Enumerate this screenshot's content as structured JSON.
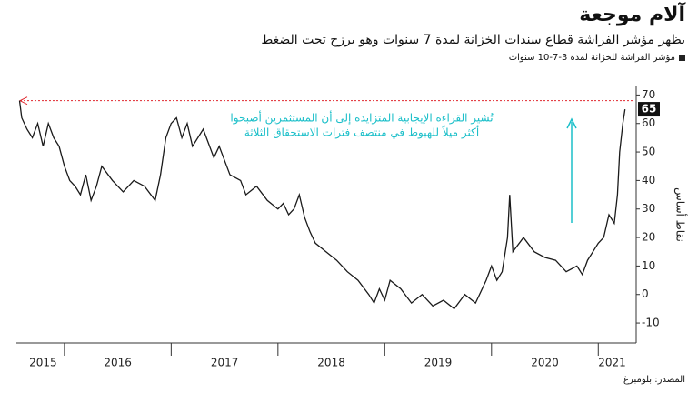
{
  "title": "آلام موجعة",
  "subtitle": "يظهر مؤشر الفراشة قطاع سندات الخزانة لمدة 7 سنوات وهو يرزح تحت الضغط",
  "source": "المصدر: بلومبرغ",
  "chart_data": {
    "type": "line",
    "y_label": "نقاط أساس",
    "annotation": [
      "تُشير القراءة الإيجابية المتزايدة إلى أن المستثمرين أصبحوا",
      "أكثر ميلاً للهبوط في منتصف فترات الاستحقاق الثلاثة"
    ],
    "annotation_color": "#1bbfc9",
    "reference_line": 68,
    "reference_color": "#e0282e",
    "x": [
      2015.58,
      2015.6,
      2015.65,
      2015.7,
      2015.75,
      2015.8,
      2015.85,
      2015.9,
      2015.95,
      2016.0,
      2016.05,
      2016.1,
      2016.15,
      2016.2,
      2016.25,
      2016.3,
      2016.35,
      2016.45,
      2016.55,
      2016.65,
      2016.75,
      2016.85,
      2016.9,
      2016.95,
      2017.0,
      2017.05,
      2017.1,
      2017.15,
      2017.2,
      2017.3,
      2017.4,
      2017.45,
      2017.55,
      2017.65,
      2017.7,
      2017.8,
      2017.9,
      2018.0,
      2018.05,
      2018.1,
      2018.15,
      2018.2,
      2018.25,
      2018.3,
      2018.35,
      2018.45,
      2018.55,
      2018.65,
      2018.75,
      2018.85,
      2018.9,
      2018.95,
      2019.0,
      2019.05,
      2019.15,
      2019.25,
      2019.35,
      2019.45,
      2019.55,
      2019.65,
      2019.75,
      2019.85,
      2019.95,
      2020.0,
      2020.05,
      2020.1,
      2020.15,
      2020.17,
      2020.2,
      2020.3,
      2020.4,
      2020.5,
      2020.6,
      2020.7,
      2020.8,
      2020.85,
      2020.9,
      2020.95,
      2021.0,
      2021.05,
      2021.1,
      2021.15,
      2021.18,
      2021.2,
      2021.23,
      2021.25
    ],
    "series": [
      {
        "name": "مؤشر الفراشة للخزانة لمدة 3-7-10 سنوات",
        "color": "#1a1a1a",
        "values": [
          68,
          62,
          58,
          55,
          60,
          52,
          60,
          55,
          52,
          45,
          40,
          38,
          35,
          42,
          33,
          38,
          45,
          40,
          36,
          40,
          38,
          33,
          42,
          55,
          60,
          62,
          55,
          60,
          52,
          58,
          48,
          52,
          42,
          40,
          35,
          38,
          33,
          30,
          32,
          28,
          30,
          35,
          27,
          22,
          18,
          15,
          12,
          8,
          5,
          0,
          -3,
          2,
          -2,
          5,
          2,
          -3,
          0,
          -4,
          -2,
          -5,
          0,
          -3,
          5,
          10,
          5,
          8,
          20,
          35,
          15,
          20,
          15,
          13,
          12,
          8,
          10,
          7,
          12,
          15,
          18,
          20,
          28,
          25,
          35,
          50,
          60,
          65
        ]
      }
    ],
    "xlim": [
      2015.55,
      2021.27
    ],
    "xticks": [
      {
        "value": 2015.8,
        "label": "2015"
      },
      {
        "value": 2016.5,
        "label": "2016"
      },
      {
        "value": 2017.5,
        "label": "2017"
      },
      {
        "value": 2018.5,
        "label": "2018"
      },
      {
        "value": 2019.5,
        "label": "2019"
      },
      {
        "value": 2020.5,
        "label": "2020"
      },
      {
        "value": 2021.13,
        "label": "2021"
      }
    ],
    "ylim": [
      -17,
      73
    ],
    "yticks": [
      -10,
      0,
      10,
      20,
      30,
      40,
      50,
      60,
      70
    ],
    "grid": false
  }
}
